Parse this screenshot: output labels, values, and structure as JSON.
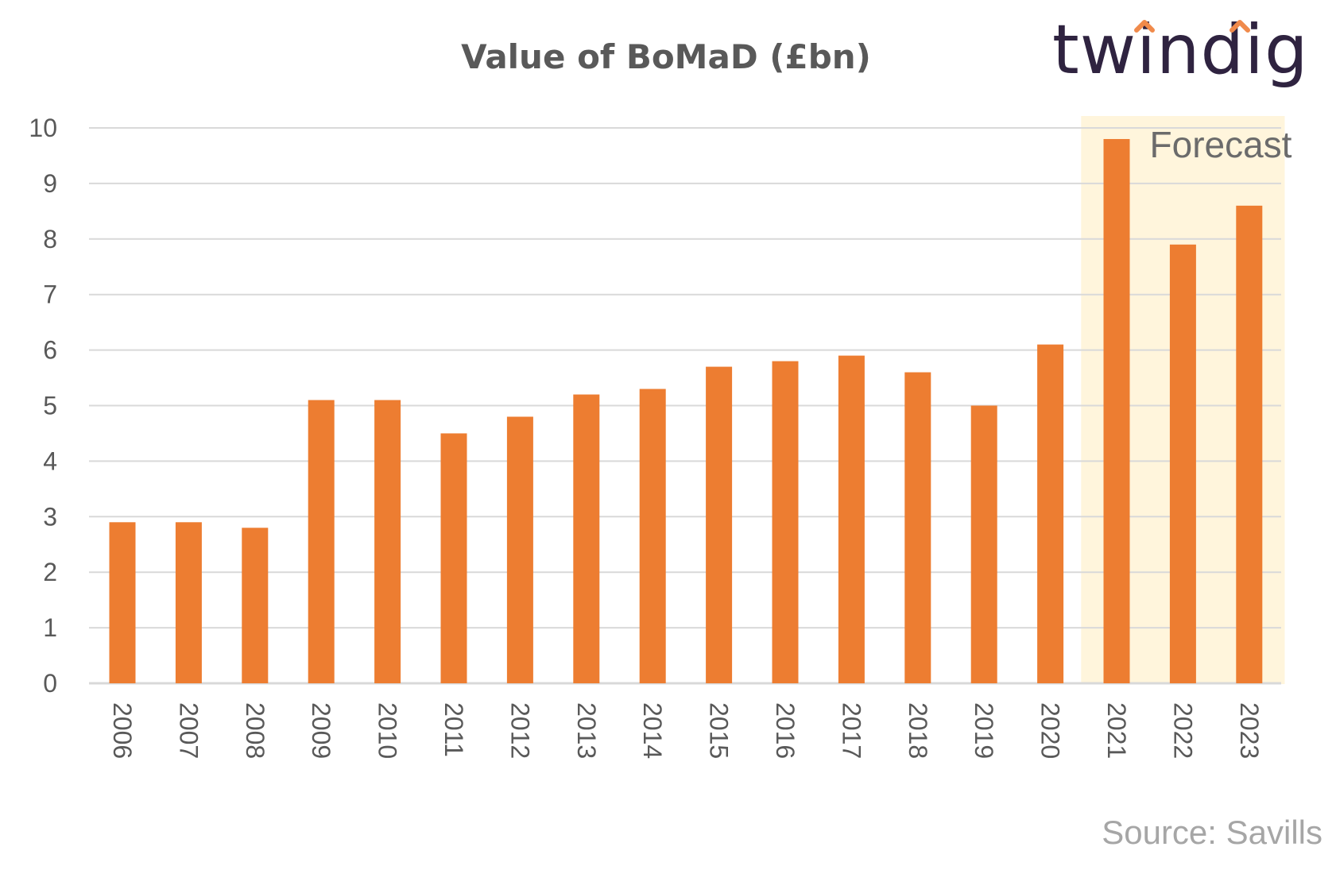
{
  "brand": {
    "logo_text": "twindig",
    "logo_color": "#2f2340",
    "logo_accent": "#f08a4b"
  },
  "source": "Source: Savills",
  "colors": {
    "bar": "#ed7d31",
    "forecast_band": "#fff5dc",
    "grid": "#d9d9d9"
  },
  "chart_data": {
    "type": "bar",
    "title": "Value of BoMaD (£bn)",
    "xlabel": "",
    "ylabel": "",
    "categories": [
      "2006",
      "2007",
      "2008",
      "2009",
      "2010",
      "2011",
      "2012",
      "2013",
      "2014",
      "2015",
      "2016",
      "2017",
      "2018",
      "2019",
      "2020",
      "2021",
      "2022",
      "2023"
    ],
    "values": [
      2.9,
      2.9,
      2.8,
      5.1,
      5.1,
      4.5,
      4.8,
      5.2,
      5.3,
      5.7,
      5.8,
      5.9,
      5.6,
      5.0,
      6.1,
      9.8,
      7.9,
      8.6
    ],
    "ylim": [
      0,
      10
    ],
    "yticks": [
      "0",
      "1",
      "2",
      "3",
      "4",
      "5",
      "6",
      "7",
      "8",
      "9",
      "10"
    ],
    "grid": true,
    "legend": "none",
    "annotations": [
      {
        "text": "Forecast",
        "categories": [
          "2021",
          "2022",
          "2023"
        ]
      }
    ]
  }
}
